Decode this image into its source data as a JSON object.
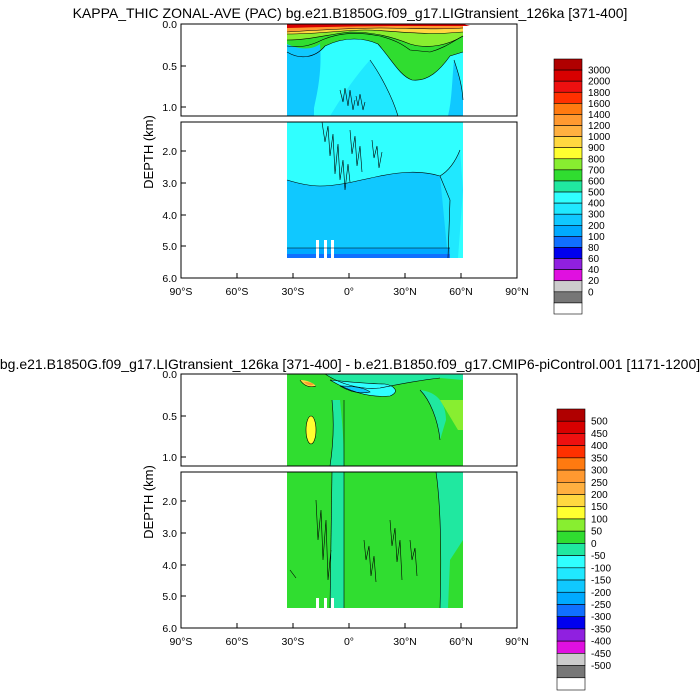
{
  "chart_data": [
    {
      "type": "contour",
      "title": "KAPPA_THIC ZONAL-AVE (PAC) bg.e21.B1850G.f09_g17.LIGtransient_126ka [371-400]",
      "ylabel": "DEPTH (km)",
      "xlim": [
        -90,
        90
      ],
      "ylim": [
        6.0,
        0.0
      ],
      "x_ticks": [
        "90°S",
        "60°S",
        "30°S",
        "0°",
        "30°N",
        "60°N",
        "90°N"
      ],
      "y_ticks_upper": [
        "0.0",
        "0.5",
        "1.0"
      ],
      "y_ticks_lower": [
        "2.0",
        "3.0",
        "4.0",
        "5.0",
        "6.0"
      ],
      "colorbar_levels": [
        "3000",
        "2000",
        "1800",
        "1600",
        "1400",
        "1200",
        "1000",
        "900",
        "800",
        "700",
        "600",
        "500",
        "400",
        "300",
        "200",
        "100",
        "80",
        "60",
        "40",
        "20",
        "0"
      ],
      "colorbar_colors": [
        "#b00000",
        "#d80000",
        "#ee1010",
        "#ff3000",
        "#ff7a10",
        "#ff9930",
        "#ffb040",
        "#ffd840",
        "#ffff30",
        "#88ee30",
        "#30dd30",
        "#20e8a0",
        "#30ffff",
        "#20e8ff",
        "#10c8ff",
        "#00aaff",
        "#1070ff",
        "#0000ee",
        "#9020e0",
        "#e010e0",
        "#cccccc",
        "#777777",
        "#ffffff"
      ]
    },
    {
      "type": "contour",
      "title": "bg.e21.B1850G.f09_g17.LIGtransient_126ka [371-400] - b.e21.B1850.f09_g17.CMIP6-piControl.001 [1171-1200]",
      "ylabel": "DEPTH (km)",
      "xlim": [
        -90,
        90
      ],
      "ylim": [
        6.0,
        0.0
      ],
      "x_ticks": [
        "90°S",
        "60°S",
        "30°S",
        "0°",
        "30°N",
        "60°N",
        "90°N"
      ],
      "y_ticks_upper": [
        "0.0",
        "0.5",
        "1.0"
      ],
      "y_ticks_lower": [
        "2.0",
        "3.0",
        "4.0",
        "5.0",
        "6.0"
      ],
      "colorbar_levels": [
        "500",
        "450",
        "400",
        "350",
        "300",
        "250",
        "200",
        "150",
        "100",
        "50",
        "0",
        "-50",
        "-100",
        "-150",
        "-200",
        "-250",
        "-300",
        "-350",
        "-400",
        "-450",
        "-500"
      ],
      "colorbar_colors": [
        "#b00000",
        "#d80000",
        "#ee1010",
        "#ff3000",
        "#ff7a10",
        "#ff9930",
        "#ffb040",
        "#ffd840",
        "#ffff30",
        "#88ee30",
        "#30dd30",
        "#20e8a0",
        "#30ffff",
        "#20e8ff",
        "#10c8ff",
        "#00aaff",
        "#1070ff",
        "#0000ee",
        "#9020e0",
        "#e010e0",
        "#cccccc",
        "#777777",
        "#ffffff"
      ]
    }
  ]
}
